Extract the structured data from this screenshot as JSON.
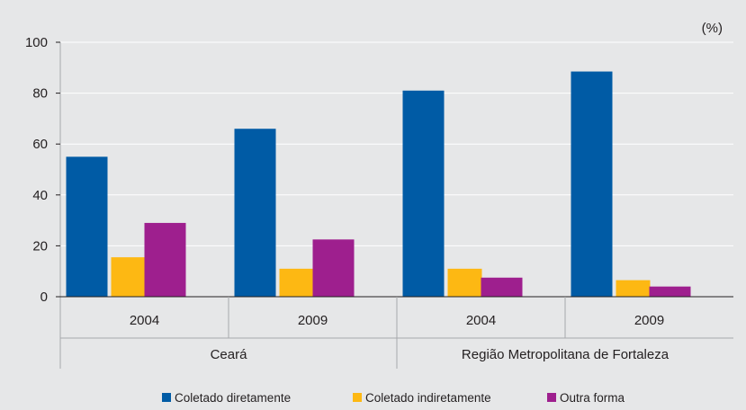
{
  "chart_data": {
    "type": "bar",
    "unit_label": "(%)",
    "ylim": [
      0,
      100
    ],
    "y_ticks": [
      0,
      20,
      40,
      60,
      80,
      100
    ],
    "grid": true,
    "legend_placement": "bottom",
    "groups": [
      {
        "name": "Ceará",
        "categories": [
          "2004",
          "2009"
        ]
      },
      {
        "name": "Região Metropolitana de Fortaleza",
        "categories": [
          "2004",
          "2009"
        ]
      }
    ],
    "categories": [
      "2004",
      "2009",
      "2004",
      "2009"
    ],
    "series": [
      {
        "name": "Coletado diretamente",
        "color": "#005ba5",
        "values": [
          55,
          66,
          81,
          88.5
        ]
      },
      {
        "name": "Coletado indiretamente",
        "color": "#fdb813",
        "values": [
          15.5,
          11,
          11,
          6.5
        ]
      },
      {
        "name": "Outra forma",
        "color": "#9e1f8e",
        "values": [
          29,
          22.5,
          7.5,
          4
        ]
      }
    ]
  }
}
